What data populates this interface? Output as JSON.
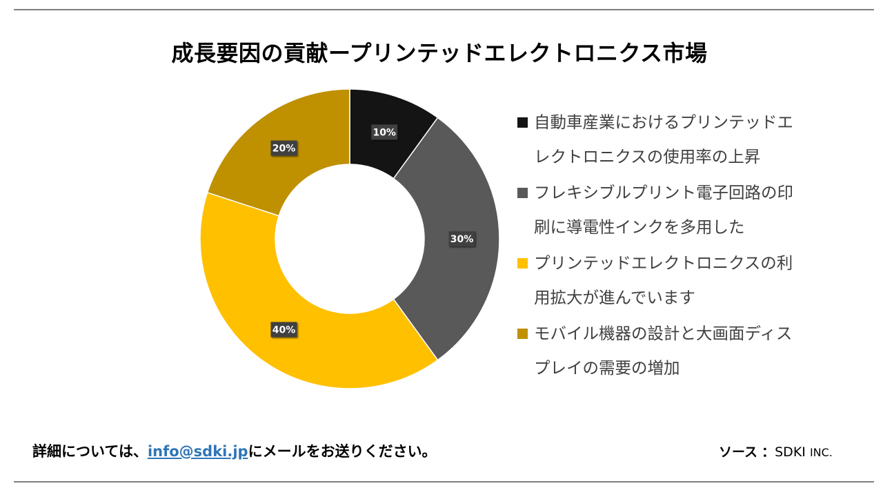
{
  "title": "成長要因の貢献ープリンテッドエレクトロニクス市場",
  "chart_data": {
    "type": "pie",
    "variant": "donut",
    "title": "成長要因の貢献ープリンテッドエレクトロニクス市場",
    "categories": [
      "自動車産業におけるプリンテッドエレクトロニクスの使用率の上昇",
      "フレキシブルプリント電子回路の印刷に導電性インクを多用した",
      "プリンテッドエレクトロニクスの利用拡大が進んでいます",
      "モバイル機器の設計と大画面ディスプレイの需要の増加"
    ],
    "values": [
      10,
      30,
      40,
      20
    ],
    "labels": [
      "10%",
      "30%",
      "40%",
      "20%"
    ],
    "colors": [
      "#141414",
      "#595959",
      "#ffc000",
      "#bf9000"
    ],
    "legend_position": "right"
  },
  "legend": {
    "items": [
      {
        "line1": "自動車産業におけるプリンテッドエ",
        "line2": "レクトロニクスの使用率の上昇"
      },
      {
        "line1": "フレキシブルプリント電子回路の印",
        "line2": "刷に導電性インクを多用した"
      },
      {
        "line1": "プリンテッドエレクトロニクスの利",
        "line2": "用拡大が進んでいます"
      },
      {
        "line1": "モバイル機器の設計と大画面ディス",
        "line2": "プレイの需要の増加"
      }
    ]
  },
  "footer": {
    "contact_prefix": "詳細については、",
    "email": "info@sdki.jp",
    "contact_suffix": "にメールをお送りください。",
    "source_label": "ソース",
    "source_sep": "：",
    "source_name": "SDKI",
    "source_inc": "INC."
  }
}
